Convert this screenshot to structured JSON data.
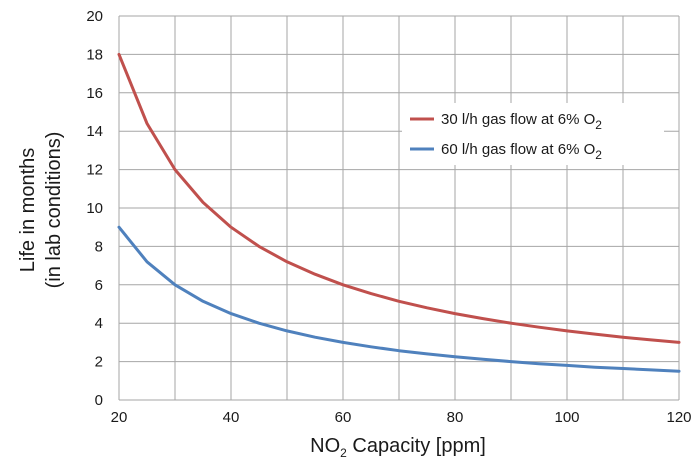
{
  "chart_data": {
    "type": "line",
    "xlabel": {
      "prefix": "NO",
      "subscript": "2",
      "suffix": " Capacity [ppm]"
    },
    "ylabel": {
      "line1": "Life in months",
      "line2": "(in lab conditions)"
    },
    "xlim": [
      20,
      120
    ],
    "ylim": [
      0,
      20
    ],
    "x_ticks": [
      20,
      40,
      60,
      80,
      100,
      120
    ],
    "y_ticks": [
      0,
      2,
      4,
      6,
      8,
      10,
      12,
      14,
      16,
      18,
      20
    ],
    "x_gridlines": [
      20,
      30,
      40,
      50,
      60,
      70,
      80,
      90,
      100,
      110,
      120
    ],
    "grid": true,
    "legend_position": "upper-right",
    "x": [
      20,
      25,
      30,
      35,
      40,
      45,
      50,
      55,
      60,
      65,
      70,
      75,
      80,
      85,
      90,
      95,
      100,
      105,
      110,
      115,
      120
    ],
    "series": [
      {
        "name": "30 l/h gas flow at 6% O",
        "name_subscript": "2",
        "color": "#c0504d",
        "values": [
          18,
          14.4,
          12,
          10.29,
          9,
          8,
          7.2,
          6.55,
          6,
          5.54,
          5.14,
          4.8,
          4.5,
          4.24,
          4,
          3.79,
          3.6,
          3.43,
          3.27,
          3.13,
          3
        ]
      },
      {
        "name": "60 l/h gas flow at 6% O",
        "name_subscript": "2",
        "color": "#4f81bd",
        "values": [
          9,
          7.2,
          6,
          5.14,
          4.5,
          4,
          3.6,
          3.27,
          3,
          2.77,
          2.57,
          2.4,
          2.25,
          2.12,
          2,
          1.89,
          1.8,
          1.71,
          1.64,
          1.57,
          1.5
        ]
      }
    ]
  }
}
